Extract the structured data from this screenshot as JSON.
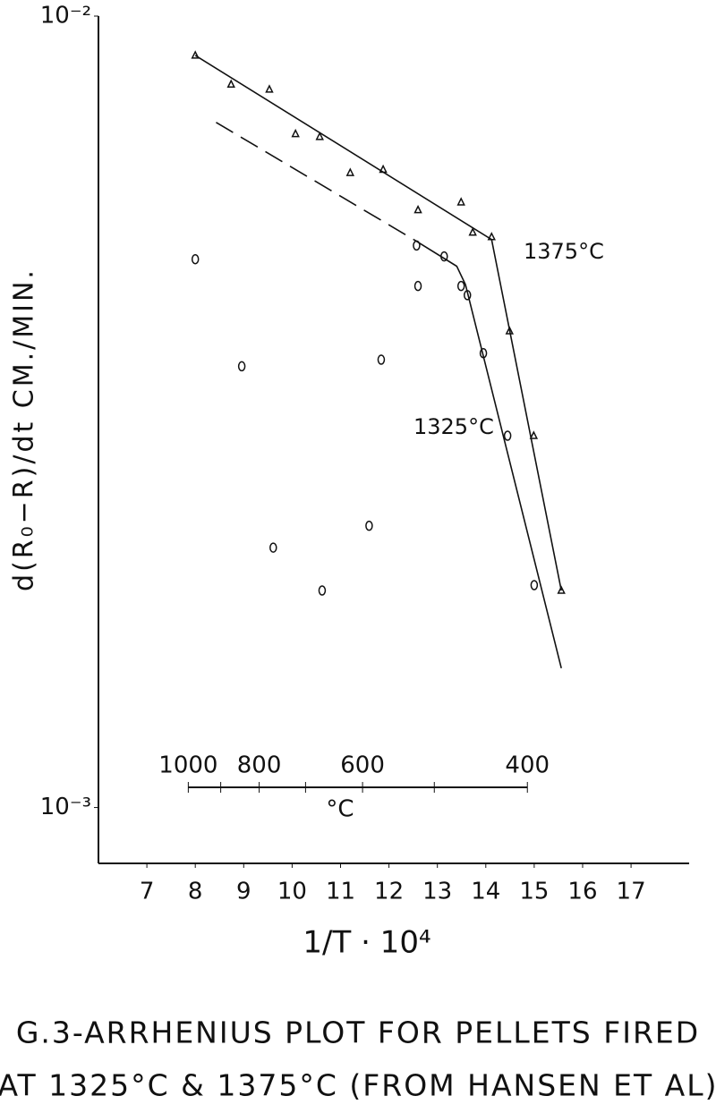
{
  "chart_data": {
    "type": "scatter",
    "x_label": "1/T · 10⁴",
    "y_label": "d(R₀−R)/dt    CM./MIN.",
    "caption": [
      "G.3-ARRHENIUS  PLOT FOR PELLETS FIRED",
      "AT 1325°C & 1375°C (FROM HANSEN ET AL)"
    ],
    "xlim": [
      6,
      18.2
    ],
    "ylim": [
      0.00085,
      0.01
    ],
    "ylog": true,
    "xticks": [
      7,
      8,
      9,
      10,
      11,
      12,
      13,
      14,
      15,
      16,
      17
    ],
    "yticks": [
      {
        "value": 0.01,
        "label": "10⁻²"
      },
      {
        "value": 0.001,
        "label": "10⁻³"
      }
    ],
    "series": [
      {
        "name": "1375°C",
        "marker": "triangle",
        "color": "#111",
        "x": [
          8,
          8.74,
          9.53,
          10.07,
          10.57,
          11.2,
          11.88,
          12.6,
          13.49,
          13.73,
          14.12,
          14.49,
          14.99,
          15.56
        ],
        "values": [
          0.00892,
          0.0082,
          0.00808,
          0.0071,
          0.00704,
          0.00634,
          0.0064,
          0.00569,
          0.00582,
          0.00533,
          0.00526,
          0.004,
          0.00295,
          0.00188
        ],
        "fits": [
          {
            "x": [
              8,
              14.12,
              15.56
            ],
            "values": [
              0.00892,
              0.00522,
              0.00188
            ],
            "dashed": false
          }
        ]
      },
      {
        "name": "1325°C",
        "marker": "circle",
        "color": "#111",
        "x": [
          8,
          8.96,
          9.61,
          10.62,
          11.59,
          11.84,
          12.57,
          12.6,
          13.14,
          13.49,
          13.62,
          13.95,
          14.45,
          15.0
        ],
        "values": [
          0.00493,
          0.00361,
          0.00213,
          0.00188,
          0.00227,
          0.00368,
          0.00513,
          0.00456,
          0.00497,
          0.00456,
          0.00444,
          0.00375,
          0.00295,
          0.00191
        ],
        "fits": [
          {
            "x": [
              8.43,
              12.51
            ],
            "values": [
              0.00734,
              0.00522
            ],
            "dashed": true
          },
          {
            "x": [
              12.51,
              13.4,
              13.58,
              15.56
            ],
            "values": [
              0.00522,
              0.00483,
              0.00458,
              0.0015
            ],
            "dashed": false
          }
        ]
      }
    ],
    "temp_scale": {
      "unit": "°C",
      "ticks": [
        1000,
        800,
        600,
        400
      ],
      "minor_ticks": [
        900,
        700,
        500
      ]
    }
  }
}
